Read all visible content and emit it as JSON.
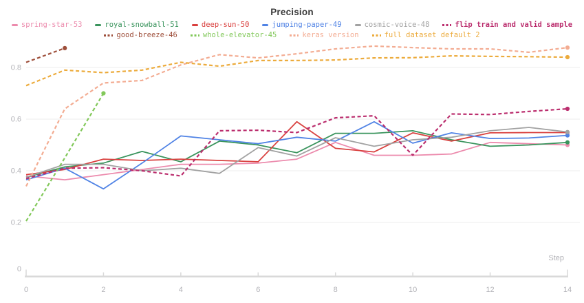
{
  "title": "Precision",
  "axes": {
    "x_label": "Step",
    "x_tick_labels": [
      "0",
      "2",
      "4",
      "6",
      "8",
      "10",
      "12",
      "14"
    ],
    "x_tick_steps": [
      0,
      2,
      4,
      6,
      8,
      10,
      12,
      14
    ],
    "y_tick_labels": [
      "0",
      "0.2",
      "0.4",
      "0.6",
      "0.8"
    ],
    "y_tick_values": [
      0,
      0.2,
      0.4,
      0.6,
      0.8
    ]
  },
  "colors": {
    "grid": "#ededed",
    "axis": "#d9d9d9",
    "tick_text": "#b2b2b7",
    "title_text": "#3b3b3b",
    "background": "#ffffff"
  },
  "chart_data": {
    "type": "line",
    "title": "Precision",
    "xlabel": "Step",
    "xlim": [
      0,
      14
    ],
    "ylim": [
      0,
      0.95
    ],
    "grid": "horizontal",
    "legend_position": "top",
    "x_step_interval": 1,
    "series": [
      {
        "name": "spring-star-53",
        "color": "#ec8bad",
        "style": "solid",
        "bold_label": false,
        "end_dot": true,
        "values": [
          0.38,
          0.365,
          0.385,
          0.405,
          0.425,
          0.425,
          0.43,
          0.445,
          0.51,
          0.46,
          0.46,
          0.465,
          0.51,
          0.505,
          0.5
        ]
      },
      {
        "name": "royal-snowball-51",
        "color": "#3a945d",
        "style": "solid",
        "bold_label": false,
        "end_dot": true,
        "values": [
          0.375,
          0.415,
          0.43,
          0.475,
          0.435,
          0.515,
          0.5,
          0.47,
          0.545,
          0.545,
          0.555,
          0.52,
          0.495,
          0.5,
          0.51
        ]
      },
      {
        "name": "deep-sun-50",
        "color": "#d9403e",
        "style": "solid",
        "bold_label": false,
        "end_dot": true,
        "values": [
          0.385,
          0.405,
          0.445,
          0.44,
          0.445,
          0.44,
          0.435,
          0.59,
          0.487,
          0.473,
          0.547,
          0.515,
          0.547,
          0.548,
          0.548
        ]
      },
      {
        "name": "jumping-paper-49",
        "color": "#5083e5",
        "style": "solid",
        "bold_label": false,
        "end_dot": true,
        "values": [
          0.365,
          0.41,
          0.33,
          0.43,
          0.535,
          0.52,
          0.505,
          0.53,
          0.515,
          0.59,
          0.507,
          0.547,
          0.525,
          0.527,
          0.537
        ]
      },
      {
        "name": "cosmic-voice-48",
        "color": "#a2a2a2",
        "style": "solid",
        "bold_label": false,
        "end_dot": true,
        "values": [
          0.375,
          0.425,
          0.425,
          0.4,
          0.41,
          0.39,
          0.49,
          0.457,
          0.528,
          0.495,
          0.52,
          0.53,
          0.555,
          0.568,
          0.55
        ]
      },
      {
        "name": "flip train and valid sample",
        "color": "#bb2e6e",
        "style": "dashed",
        "bold_label": true,
        "end_dot": true,
        "values": [
          0.37,
          0.41,
          0.412,
          0.4,
          0.38,
          0.555,
          0.557,
          0.548,
          0.605,
          0.613,
          0.46,
          0.62,
          0.618,
          0.63,
          0.64
        ]
      },
      {
        "name": "good-breeze-46",
        "color": "#9e4f3b",
        "style": "dashed",
        "bold_label": false,
        "end_dot": true,
        "values": [
          0.82,
          0.875
        ]
      },
      {
        "name": "whole-elevator-45",
        "color": "#82c85a",
        "style": "dashed",
        "bold_label": false,
        "end_dot": true,
        "values": [
          0.205,
          0.45,
          0.7
        ]
      },
      {
        "name": "keras version",
        "color": "#f3ac92",
        "style": "dashed",
        "bold_label": false,
        "end_dot": true,
        "values": [
          0.34,
          0.64,
          0.74,
          0.75,
          0.81,
          0.85,
          0.837,
          0.853,
          0.872,
          0.883,
          0.877,
          0.872,
          0.872,
          0.859,
          0.877
        ]
      },
      {
        "name": "full dataset default 2",
        "color": "#ecab3c",
        "style": "dashed",
        "bold_label": false,
        "end_dot": true,
        "values": [
          0.73,
          0.79,
          0.78,
          0.79,
          0.82,
          0.805,
          0.827,
          0.827,
          0.829,
          0.837,
          0.838,
          0.845,
          0.843,
          0.842,
          0.84
        ]
      }
    ],
    "legend_rows": [
      [
        "spring-star-53",
        "royal-snowball-51",
        "deep-sun-50",
        "jumping-paper-49",
        "cosmic-voice-48",
        "flip train and valid sample"
      ],
      [
        "good-breeze-46",
        "whole-elevator-45",
        "keras version",
        "full dataset default 2"
      ]
    ]
  }
}
